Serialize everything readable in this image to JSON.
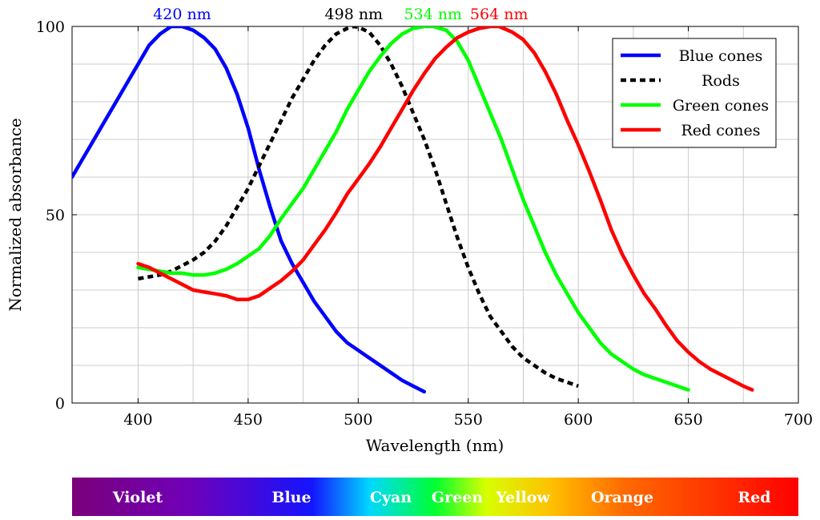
{
  "chart_data": {
    "type": "line",
    "title": "",
    "xlabel": "Wavelength (nm)",
    "ylabel": "Normalized absorbance",
    "xlim": [
      370,
      700
    ],
    "ylim": [
      0,
      100
    ],
    "xticks": [
      400,
      450,
      500,
      550,
      600,
      650,
      700
    ],
    "yticks": [
      0,
      50,
      100
    ],
    "grid": true,
    "legend_position": "top-right",
    "series": [
      {
        "name": "Blue cones",
        "color": "#0000ff",
        "dash": "solid",
        "x": [
          370,
          375,
          380,
          385,
          390,
          395,
          400,
          405,
          410,
          415,
          420,
          425,
          430,
          435,
          440,
          445,
          450,
          455,
          460,
          465,
          470,
          475,
          480,
          485,
          490,
          495,
          500,
          505,
          510,
          515,
          520,
          525,
          530
        ],
        "y": [
          60,
          65,
          70,
          75,
          80,
          85,
          90,
          95,
          98,
          100,
          100,
          99,
          97,
          94,
          89,
          82,
          73,
          62,
          52,
          43,
          37,
          32,
          27,
          23,
          19,
          16,
          14,
          12,
          10,
          8,
          6,
          4.5,
          3
        ]
      },
      {
        "name": "Rods",
        "color": "#000000",
        "dash": "dashed",
        "x": [
          400,
          405,
          410,
          415,
          420,
          425,
          430,
          435,
          440,
          445,
          450,
          455,
          460,
          465,
          470,
          475,
          480,
          485,
          490,
          495,
          498,
          500,
          505,
          510,
          515,
          520,
          525,
          530,
          535,
          540,
          545,
          550,
          555,
          560,
          565,
          570,
          575,
          580,
          585,
          590,
          595,
          600
        ],
        "y": [
          33,
          33.5,
          34,
          35,
          36.5,
          38,
          40,
          43,
          47,
          52,
          57,
          63,
          69,
          75,
          81,
          86,
          91,
          95,
          98,
          99.5,
          100,
          99.8,
          98.5,
          95,
          90,
          84,
          77,
          70,
          62,
          53,
          44,
          36,
          29,
          23,
          19,
          15,
          12,
          10,
          8,
          6.5,
          5.5,
          4.5
        ]
      },
      {
        "name": "Green cones",
        "color": "#00ff00",
        "dash": "solid",
        "x": [
          400,
          405,
          410,
          415,
          420,
          425,
          430,
          435,
          440,
          445,
          450,
          455,
          460,
          465,
          470,
          475,
          480,
          485,
          490,
          495,
          500,
          505,
          510,
          515,
          520,
          525,
          530,
          534,
          540,
          545,
          550,
          555,
          560,
          565,
          570,
          575,
          580,
          585,
          590,
          595,
          600,
          605,
          610,
          615,
          620,
          625,
          630,
          635,
          640,
          645,
          650
        ],
        "y": [
          36,
          35.5,
          35,
          34.5,
          34.5,
          34,
          34,
          34.5,
          35.5,
          37,
          39,
          41,
          44.5,
          49,
          53,
          57,
          62,
          67,
          72,
          78,
          83,
          88,
          92,
          95.5,
          98,
          99.5,
          100,
          100,
          99,
          96,
          91,
          84,
          77,
          70,
          62,
          54,
          47,
          40,
          34,
          29,
          24,
          20,
          16,
          13,
          11,
          9,
          7.5,
          6.5,
          5.5,
          4.5,
          3.5
        ]
      },
      {
        "name": "Red cones",
        "color": "#ff0000",
        "dash": "solid",
        "x": [
          400,
          405,
          410,
          415,
          420,
          425,
          430,
          435,
          440,
          445,
          450,
          455,
          460,
          465,
          470,
          475,
          480,
          485,
          490,
          495,
          500,
          505,
          510,
          515,
          520,
          525,
          530,
          535,
          540,
          545,
          550,
          555,
          560,
          564,
          570,
          575,
          580,
          585,
          590,
          595,
          600,
          605,
          610,
          615,
          620,
          625,
          630,
          635,
          640,
          645,
          650,
          655,
          660,
          665,
          670,
          675,
          679
        ],
        "y": [
          37,
          36,
          34.5,
          33,
          31.5,
          30,
          29.5,
          29,
          28.5,
          27.5,
          27.5,
          28.5,
          30.5,
          32.5,
          35,
          38,
          42,
          46,
          50.5,
          55.5,
          59.5,
          63.5,
          68,
          73,
          78,
          83,
          87.5,
          91.5,
          94.5,
          97,
          98.5,
          99.5,
          100,
          100,
          98.5,
          96.5,
          93,
          88,
          82,
          75,
          68.5,
          61.5,
          54,
          46,
          39.5,
          34,
          29,
          25,
          20.5,
          16.5,
          13.5,
          11,
          9,
          7.5,
          6,
          4.5,
          3.5
        ]
      }
    ],
    "annotations": [
      {
        "text": "420 nm",
        "x": 420,
        "color": "#0000ff"
      },
      {
        "text": "498 nm",
        "x": 498,
        "color": "#000000"
      },
      {
        "text": "534 nm",
        "x": 534,
        "color": "#00ff00"
      },
      {
        "text": "564 nm",
        "x": 564,
        "color": "#ff0000"
      }
    ],
    "spectrum_bar": {
      "labels": [
        {
          "text": "Violet",
          "wavelength": 400
        },
        {
          "text": "Blue",
          "wavelength": 470
        },
        {
          "text": "Cyan",
          "wavelength": 490
        },
        {
          "text": "Green",
          "wavelength": 520
        },
        {
          "text": "Yellow",
          "wavelength": 575
        },
        {
          "text": "Orange",
          "wavelength": 605
        },
        {
          "text": "Red",
          "wavelength": 680
        }
      ],
      "stops": [
        {
          "offset": 0.0,
          "color": "#7a007a"
        },
        {
          "offset": 0.16,
          "color": "#7000b8"
        },
        {
          "offset": 0.33,
          "color": "#1414ff"
        },
        {
          "offset": 0.41,
          "color": "#00d8ff"
        },
        {
          "offset": 0.5,
          "color": "#00ff30"
        },
        {
          "offset": 0.57,
          "color": "#d8ff00"
        },
        {
          "offset": 0.66,
          "color": "#ffc000"
        },
        {
          "offset": 0.76,
          "color": "#ff6a00"
        },
        {
          "offset": 1.0,
          "color": "#ff0000"
        }
      ]
    }
  }
}
